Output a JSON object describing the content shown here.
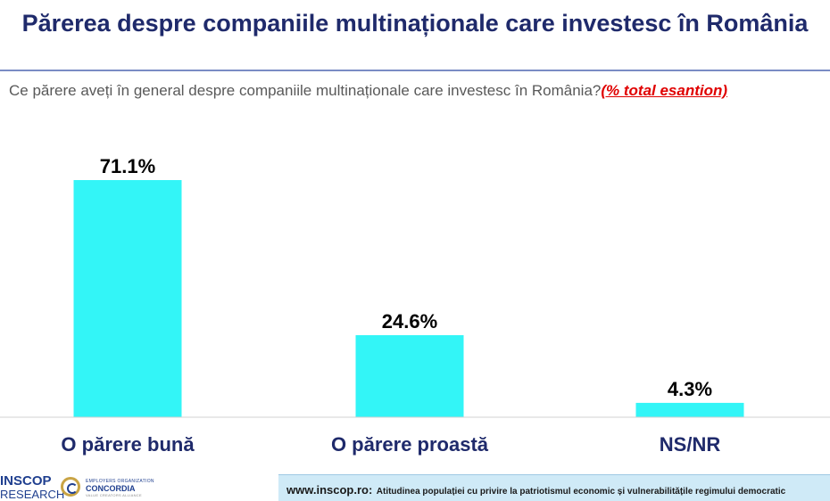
{
  "title": "Părerea despre companiile multinaționale care investesc în România",
  "question": "Ce părere aveți în general despre companiile multinaționale care investesc în România?",
  "sample_note": "(% total esantion)",
  "chart_data": {
    "type": "bar",
    "categories": [
      "O părere bună",
      "O părere proastă",
      "NS/NR"
    ],
    "values": [
      71.1,
      24.6,
      4.3
    ],
    "value_labels": [
      "71.1%",
      "24.6%",
      "4.3%"
    ],
    "title": "",
    "xlabel": "",
    "ylabel": "",
    "ylim": [
      0,
      71.1
    ],
    "grid": false,
    "legend": "none",
    "bar_color": "#33f5f7"
  },
  "footer": {
    "logo_name": "INSCOP",
    "logo_subtitle": "RESEARCH",
    "partner_small_top": "EMPLOYERS ORGANIZATION",
    "partner_name": "CONCORDIA",
    "partner_small_bottom": "VALUE CREATORS ALLIANCE",
    "url": "www.inscop.ro:",
    "text": "Atitudinea populației cu privire la patriotismul economic și vulnerabilitățile regimului democratic"
  },
  "colors": {
    "title": "#1f2a6b",
    "accent_red": "#e00000",
    "footer_bg": "#cfeaf7"
  }
}
